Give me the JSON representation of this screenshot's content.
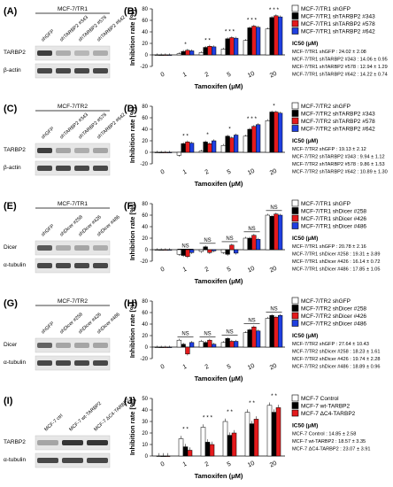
{
  "colors": {
    "black": "#000000",
    "white": "#ffffff",
    "red": "#e41a1c",
    "blue": "#1f3fe0",
    "blot_bg": "#e6e6e6",
    "band": "#2b2b2b"
  },
  "panels": [
    {
      "letter_left": "(A)",
      "blot": {
        "cell": "MCF-7/TR1",
        "lanes": [
          "shGFP",
          "shTARBP2 #343",
          "shTARBP2 #578",
          "shTARBP2 #642"
        ],
        "rows": [
          {
            "label": "TARBP2",
            "intensity": [
              0.9,
              0.3,
              0.25,
              0.3
            ]
          },
          {
            "label": "β-actin",
            "intensity": [
              0.85,
              0.85,
              0.85,
              0.85
            ]
          }
        ]
      },
      "letter_right": "(B)",
      "ic50_title": "IC50 (μM)",
      "ic50": [
        "MCF-7/TR1 shGFP : 24.02 ± 2.08",
        "MCF-7/TR1 shTARBP2 #343 : 14.06 ± 0.95",
        "MCF-7/TR1 shTARBP2 #578 : 12.94 ± 1.29",
        "MCF-7/TR1 shTARBP2 #642 : 14.22 ± 0.74"
      ]
    },
    {
      "letter_left": "(C)",
      "blot": {
        "cell": "MCF-7/TR2",
        "lanes": [
          "shGFP",
          "shTARBP2 #343",
          "shTARBP2 #578",
          "shTARBP2 #642"
        ],
        "rows": [
          {
            "label": "TARBP2",
            "intensity": [
              0.9,
              0.35,
              0.3,
              0.35
            ]
          },
          {
            "label": "β-actin",
            "intensity": [
              0.85,
              0.85,
              0.85,
              0.85
            ]
          }
        ]
      },
      "letter_right": "(D)",
      "ic50_title": "IC50 (μM)",
      "ic50": [
        "MCF-7/TR2 shGFP : 19.13 ± 2.12",
        "MCF-7/TR2 shTARBP2 #343 : 9.94 ± 1.12",
        "MCF-7/TR2 shTARBP2 #578 : 9.86 ± 1.53",
        "MCF-7/TR2 shTARBP2 #642 : 10.89 ± 1.30"
      ]
    },
    {
      "letter_left": "(E)",
      "blot": {
        "cell": "MCF-7/TR1",
        "lanes": [
          "shGFP",
          "shDicer #258",
          "shDicer #426",
          "shDicer #486"
        ],
        "rows": [
          {
            "label": "Dicer",
            "intensity": [
              0.75,
              0.3,
              0.35,
              0.3
            ]
          },
          {
            "label": "α-tubulin",
            "intensity": [
              0.85,
              0.85,
              0.85,
              0.85
            ]
          }
        ]
      },
      "letter_right": "(F)",
      "ic50_title": "IC50 (μM)",
      "ic50": [
        "MCF-7/TR1 shGFP : 20.78 ± 2.16",
        "MCF-7/TR1 shDicer #258 : 19.31 ± 3.89",
        "MCF-7/TR1 shDicer #426 : 16.14 ± 0.72",
        "MCF-7/TR1 shDicer #486 : 17.85 ± 1.05"
      ]
    },
    {
      "letter_left": "(G)",
      "blot": {
        "cell": "MCF-7/TR2",
        "lanes": [
          "shGFP",
          "shDicer #258",
          "shDicer #426",
          "shDicer #486"
        ],
        "rows": [
          {
            "label": "Dicer",
            "intensity": [
              0.7,
              0.35,
              0.35,
              0.35
            ]
          },
          {
            "label": "α-tubulin",
            "intensity": [
              0.85,
              0.85,
              0.85,
              0.85
            ]
          }
        ]
      },
      "letter_right": "(H)",
      "ic50_title": "IC50 (μM)",
      "ic50": [
        "MCF-7/TR2 shGFP : 27.64 ± 10.43",
        "MCF-7/TR2 shDicer #258 : 18.23 ± 1.61",
        "MCF-7/TR2 shDicer #426 : 19.74 ± 2.28",
        "MCF-7/TR2 shDicer #486 : 18.89 ± 0.96"
      ]
    },
    {
      "letter_left": "(I)",
      "blot": {
        "cell": "",
        "lanes": [
          "MCF-7 ctrl",
          "MCF-7 wt-TARBP2",
          "MCF-7 ΔC4-TARBP2"
        ],
        "rows": [
          {
            "label": "TARBP2",
            "intensity": [
              0.35,
              0.95,
              0.95
            ]
          },
          {
            "label": "α-tubulin",
            "intensity": [
              0.85,
              0.85,
              0.85
            ]
          }
        ]
      },
      "letter_right": "(J)",
      "ic50_title": "IC50 (μM)",
      "ic50": [
        "MCF-7 Control : 14.85 ± 2.58",
        "MCF-7 wt-TARBP2 : 18.57 ± 3.35",
        "MCF-7 ΔC4-TARBP2 : 23.07 ± 3.91"
      ]
    }
  ],
  "chart_data": [
    {
      "type": "bar",
      "ylabel": "Inhibition rate [%]",
      "xlabel": "Tamoxifen (μM)",
      "categories": [
        "0",
        "1",
        "2",
        "5",
        "10",
        "20"
      ],
      "ylim": [
        -20,
        80
      ],
      "yticks": [
        -20,
        0,
        20,
        40,
        60,
        80
      ],
      "series": [
        {
          "name": "MCF-7/TR1 shGFP",
          "color": "#ffffff",
          "values": [
            0,
            2,
            4,
            10,
            25,
            45
          ]
        },
        {
          "name": "MCF-7/TR1 shTARBP2 #343",
          "color": "#000000",
          "values": [
            0,
            6,
            13,
            28,
            47,
            65
          ]
        },
        {
          "name": "MCF-7/TR1 shTARBP2 #578",
          "color": "#e41a1c",
          "values": [
            0,
            8,
            15,
            30,
            50,
            68
          ]
        },
        {
          "name": "MCF-7/TR1 shTARBP2 #642",
          "color": "#1f3fe0",
          "values": [
            0,
            7,
            14,
            29,
            48,
            66
          ]
        }
      ],
      "annotations": [
        {
          "x": "1",
          "text": "*"
        },
        {
          "x": "2",
          "text": "* *"
        },
        {
          "x": "5",
          "text": "* * *"
        },
        {
          "x": "10",
          "text": "* * *"
        },
        {
          "x": "20",
          "text": "* * *"
        }
      ]
    },
    {
      "type": "bar",
      "ylabel": "Inhibition rate [%]",
      "xlabel": "Tamoxifen (μM)",
      "categories": [
        "0",
        "1",
        "2",
        "5",
        "10",
        "20"
      ],
      "ylim": [
        -20,
        80
      ],
      "yticks": [
        -20,
        0,
        20,
        40,
        60,
        80
      ],
      "series": [
        {
          "name": "MCF-7/TR2 shGFP",
          "color": "#ffffff",
          "values": [
            0,
            -5,
            2,
            12,
            28,
            55
          ]
        },
        {
          "name": "MCF-7/TR2 shTARBP2 #343",
          "color": "#000000",
          "values": [
            0,
            15,
            18,
            28,
            40,
            70
          ]
        },
        {
          "name": "MCF-7/TR2 shTARBP2 #578",
          "color": "#e41a1c",
          "values": [
            0,
            18,
            15,
            25,
            45,
            70
          ]
        },
        {
          "name": "MCF-7/TR2 shTARBP2 #642",
          "color": "#1f3fe0",
          "values": [
            0,
            16,
            20,
            30,
            48,
            68
          ]
        }
      ],
      "annotations": [
        {
          "x": "1",
          "text": "* *"
        },
        {
          "x": "2",
          "text": "*"
        },
        {
          "x": "5",
          "text": "*"
        },
        {
          "x": "10",
          "text": "* * *"
        },
        {
          "x": "20",
          "text": "*"
        }
      ]
    },
    {
      "type": "bar",
      "ylabel": "Inhibition rate [%]",
      "xlabel": "Tamoxifen (μM)",
      "categories": [
        "0",
        "1",
        "2",
        "5",
        "10",
        "20"
      ],
      "ylim": [
        -20,
        80
      ],
      "yticks": [
        -20,
        0,
        20,
        40,
        60,
        80
      ],
      "series": [
        {
          "name": "MCF-7/TR1 shGFP",
          "color": "#ffffff",
          "values": [
            0,
            -8,
            -3,
            -5,
            20,
            60
          ]
        },
        {
          "name": "MCF-7/TR1 shDicer #258",
          "color": "#000000",
          "values": [
            0,
            -10,
            5,
            -8,
            20,
            58
          ]
        },
        {
          "name": "MCF-7/TR1 shDicer #426",
          "color": "#e41a1c",
          "values": [
            0,
            -12,
            -5,
            8,
            25,
            62
          ]
        },
        {
          "name": "MCF-7/TR1 shDicer #486",
          "color": "#1f3fe0",
          "values": [
            0,
            -5,
            -2,
            -6,
            18,
            60
          ]
        }
      ],
      "annotations": [
        {
          "x": "1",
          "text": "NS"
        },
        {
          "x": "2",
          "text": "NS"
        },
        {
          "x": "5",
          "text": "NS"
        },
        {
          "x": "10",
          "text": "NS"
        },
        {
          "x": "20",
          "text": "NS"
        }
      ]
    },
    {
      "type": "bar",
      "ylabel": "Inhibition rate [%]",
      "xlabel": "Tamoxifen (μM)",
      "categories": [
        "0",
        "1",
        "2",
        "5",
        "10",
        "20"
      ],
      "ylim": [
        -20,
        80
      ],
      "yticks": [
        -20,
        0,
        20,
        40,
        60,
        80
      ],
      "series": [
        {
          "name": "MCF-7/TR2 shGFP",
          "color": "#ffffff",
          "values": [
            0,
            12,
            10,
            8,
            25,
            50
          ]
        },
        {
          "name": "MCF-7/TR2 shDicer #258",
          "color": "#000000",
          "values": [
            0,
            5,
            8,
            15,
            30,
            55
          ]
        },
        {
          "name": "MCF-7/TR2 shDicer #426",
          "color": "#e41a1c",
          "values": [
            0,
            -12,
            12,
            10,
            35,
            52
          ]
        },
        {
          "name": "MCF-7/TR2 shDicer #486",
          "color": "#1f3fe0",
          "values": [
            0,
            8,
            5,
            10,
            28,
            55
          ]
        }
      ],
      "annotations": [
        {
          "x": "1",
          "text": "NS"
        },
        {
          "x": "2",
          "text": "NS"
        },
        {
          "x": "5",
          "text": "NS"
        },
        {
          "x": "10",
          "text": "NS"
        },
        {
          "x": "20",
          "text": "NS"
        }
      ]
    },
    {
      "type": "bar",
      "ylabel": "Inhibition rate [%]",
      "xlabel": "Tamoxifen (μM)",
      "categories": [
        "0",
        "1",
        "2",
        "5",
        "10",
        "20"
      ],
      "ylim": [
        0,
        50
      ],
      "yticks": [
        0,
        10,
        20,
        30,
        40,
        50
      ],
      "series": [
        {
          "name": "MCF-7 Control",
          "color": "#ffffff",
          "values": [
            0,
            15,
            25,
            30,
            38,
            44
          ]
        },
        {
          "name": "MCF-7 wt-TARBP2",
          "color": "#000000",
          "values": [
            0,
            8,
            12,
            18,
            28,
            38
          ]
        },
        {
          "name": "MCF-7 ΔC4-TARBP2",
          "color": "#e41a1c",
          "values": [
            0,
            5,
            10,
            20,
            32,
            42
          ]
        }
      ],
      "annotations": [
        {
          "x": "1",
          "text": "* *"
        },
        {
          "x": "2",
          "text": "* * *"
        },
        {
          "x": "5",
          "text": "* *"
        },
        {
          "x": "10",
          "text": "* *"
        },
        {
          "x": "20",
          "text": "* *"
        }
      ]
    }
  ]
}
